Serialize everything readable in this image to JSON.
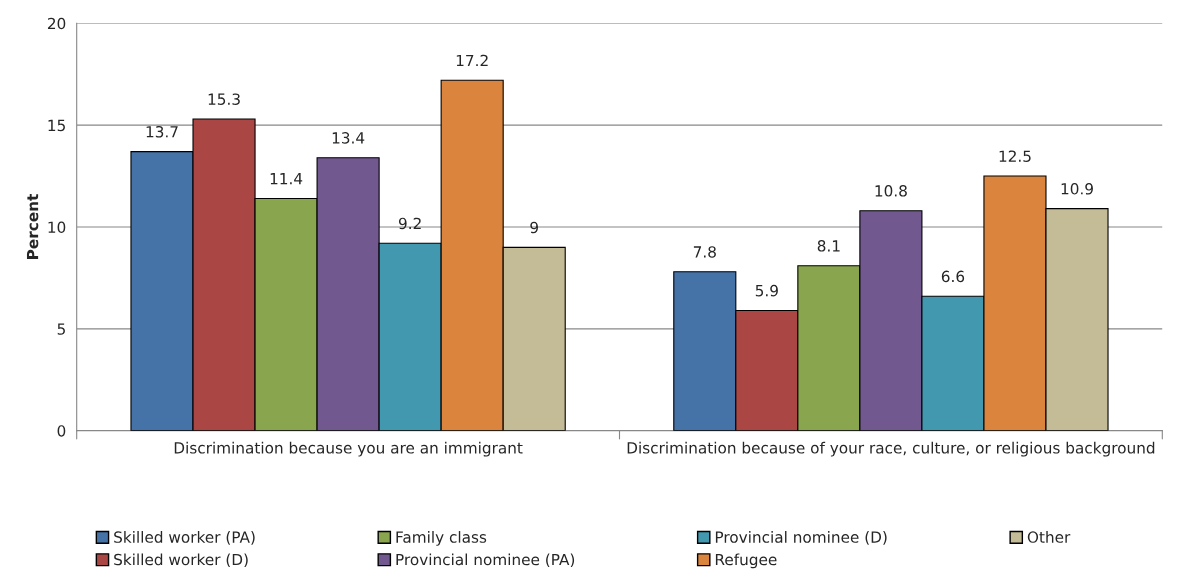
{
  "chart_data": {
    "type": "bar",
    "ylabel": "Percent",
    "categories": [
      "Discrimination because you are an immigrant",
      "Discrimination because of your race, culture, or religious background"
    ],
    "series": [
      {
        "name": "Skilled worker (PA)",
        "color": "#4572a7",
        "values": [
          13.7,
          7.8
        ]
      },
      {
        "name": "Skilled worker (D)",
        "color": "#aa4643",
        "values": [
          15.3,
          5.9
        ]
      },
      {
        "name": "Family class",
        "color": "#89a54e",
        "values": [
          11.4,
          8.1
        ]
      },
      {
        "name": "Provincial nominee (PA)",
        "color": "#71588f",
        "values": [
          13.4,
          10.8
        ]
      },
      {
        "name": "Provincial nominee (D)",
        "color": "#4198af",
        "values": [
          9.2,
          6.6
        ]
      },
      {
        "name": "Refugee",
        "color": "#db843d",
        "values": [
          17.2,
          12.5
        ]
      },
      {
        "name": "Other",
        "color": "#c4bc96",
        "values": [
          9,
          10.9
        ]
      }
    ],
    "ylim": [
      0,
      20
    ],
    "yticks": [
      0,
      5,
      10,
      15,
      20
    ],
    "grid": "y",
    "legend": "bottom",
    "data_labels": true
  }
}
